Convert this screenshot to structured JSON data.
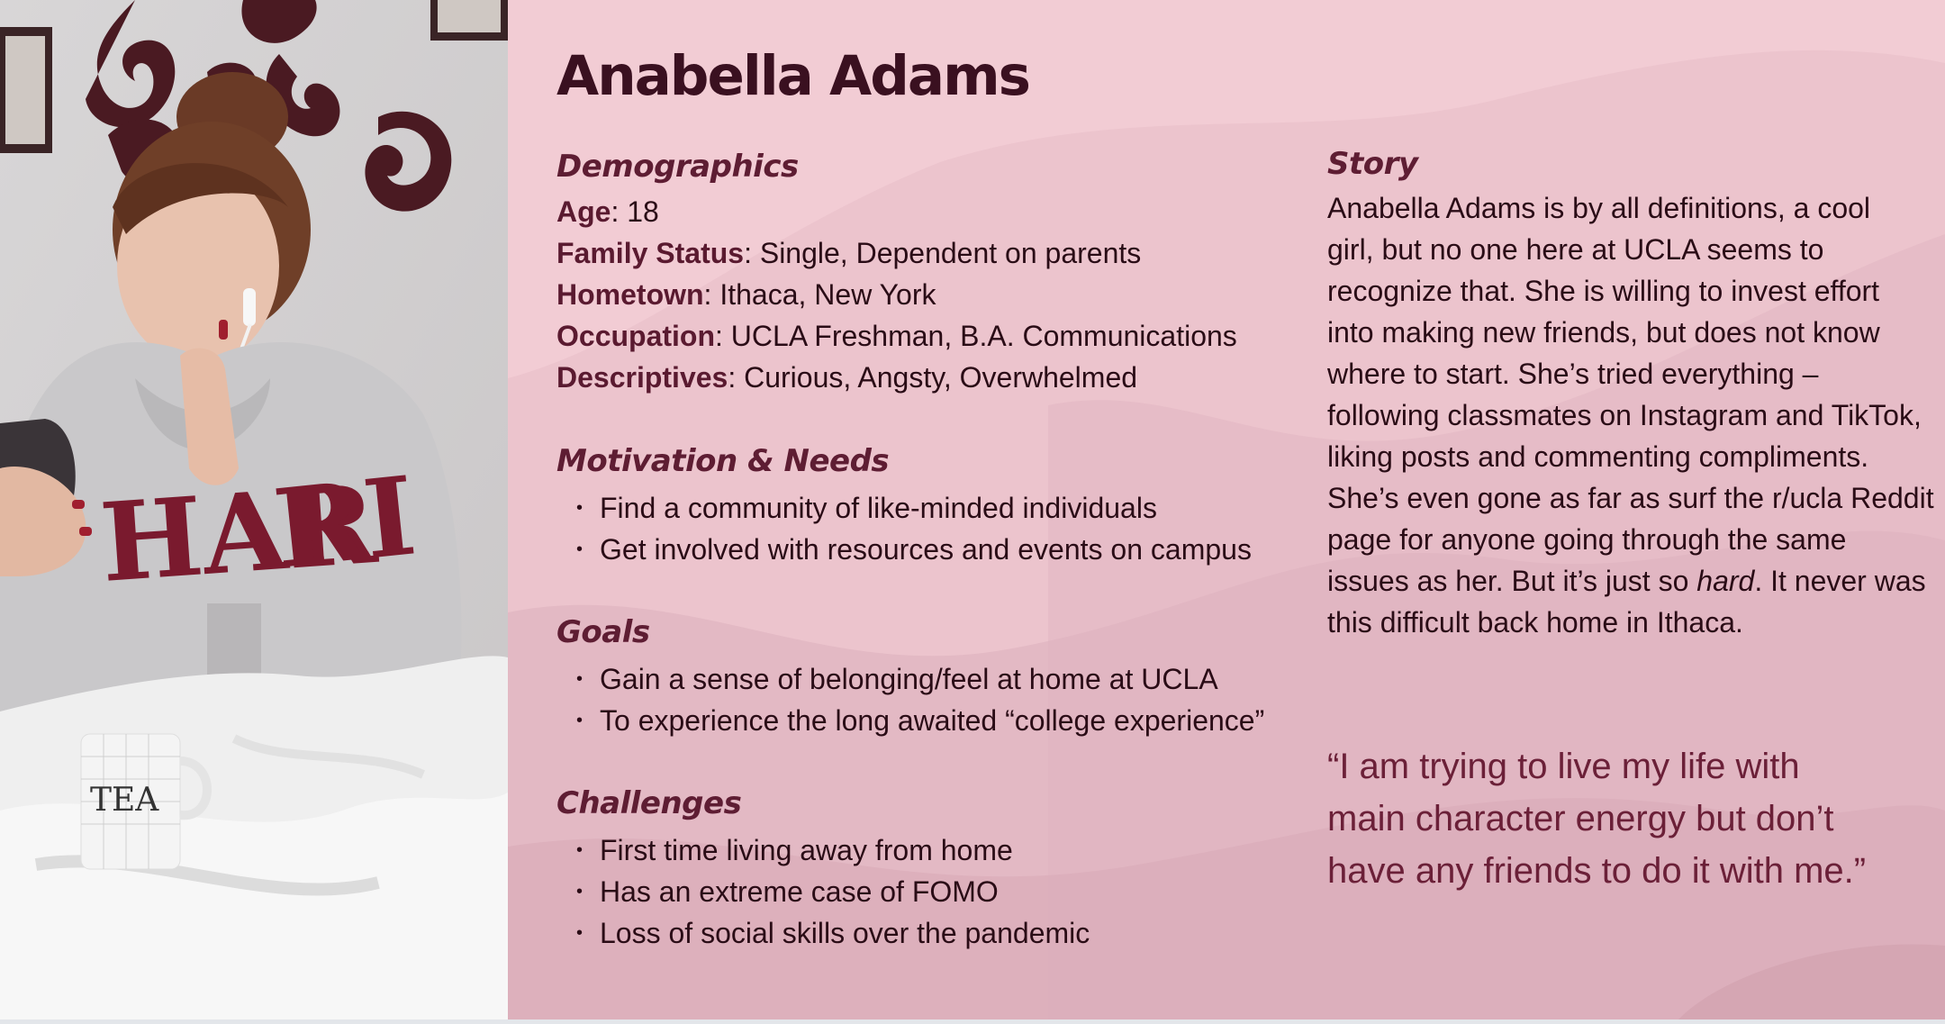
{
  "persona": {
    "name": "Anabella Adams",
    "photo_alt": "Young woman in a HARVARD hoodie with earbuds looking at a phone on a bed",
    "demographics": {
      "heading": "Demographics",
      "items": [
        {
          "label": "Age",
          "value": ": 18"
        },
        {
          "label": "Family Status",
          "value": ": Single, Dependent on parents"
        },
        {
          "label": "Hometown",
          "value": ": Ithaca, New York"
        },
        {
          "label": "Occupation",
          "value": ": UCLA Freshman, B.A. Communications"
        },
        {
          "label": "Descriptives",
          "value": ": Curious, Angsty, Overwhelmed"
        }
      ]
    },
    "motivation": {
      "heading": "Motivation & Needs",
      "items": [
        "Find a community of like-minded individuals",
        "Get involved with resources and events on campus"
      ]
    },
    "goals": {
      "heading": "Goals",
      "items": [
        "Gain a sense of belonging/feel at home at UCLA",
        "To experience the long awaited “college experience”"
      ]
    },
    "challenges": {
      "heading": "Challenges",
      "items": [
        "First time living away from home",
        "Has an extreme case of FOMO",
        "Loss of social skills over the pandemic"
      ]
    },
    "story": {
      "heading": "Story",
      "lines": [
        "Anabella Adams is by all definitions, a cool",
        "girl, but no one here at UCLA seems to",
        "recognize that. She is willing to invest effort",
        "into making new friends, but does not know",
        "where to start. She’s tried everything –",
        "following classmates on Instagram and TikTok,",
        "liking posts and commenting compliments.",
        "She’s even gone as far as surf the r/ucla Reddit",
        "page for anyone going through the same"
      ],
      "line10_before": "issues as her. But it’s just so ",
      "line10_em": "hard",
      "line10_after": ". It never was",
      "line11": "this difficult back home in Ithaca."
    },
    "quote": {
      "lines": [
        "“I am trying to live my life with",
        "main character energy but don’t",
        "have any friends to do it with me.”"
      ]
    }
  },
  "colors": {
    "panel_bg": "#f2ccd4",
    "heading": "#5e1d33",
    "title": "#3a1020",
    "quote": "#6b2038"
  }
}
